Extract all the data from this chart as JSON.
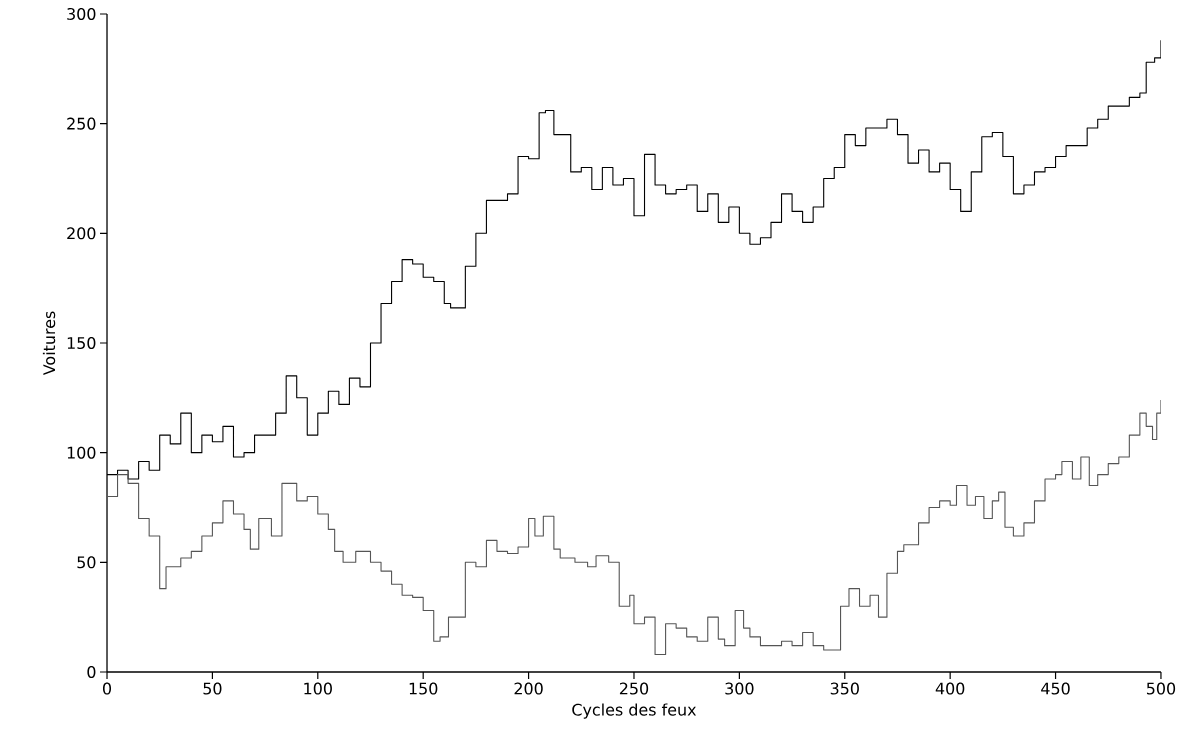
{
  "chart_data": {
    "type": "step",
    "xlabel": "Cycles des feux",
    "ylabel": "Voitures",
    "xlim": [
      0,
      500
    ],
    "ylim": [
      0,
      300
    ],
    "xticks": [
      0,
      50,
      100,
      150,
      200,
      250,
      300,
      350,
      400,
      450,
      500
    ],
    "yticks": [
      0,
      50,
      100,
      150,
      200,
      250,
      300
    ],
    "grid": false,
    "marker": "none",
    "line_style": "solid",
    "series": [
      {
        "color": "#000000",
        "x": [
          0,
          5,
          10,
          15,
          20,
          25,
          30,
          35,
          40,
          45,
          50,
          55,
          60,
          65,
          70,
          80,
          85,
          90,
          95,
          100,
          105,
          110,
          115,
          120,
          125,
          130,
          135,
          140,
          145,
          150,
          155,
          160,
          163,
          170,
          175,
          180,
          190,
          195,
          200,
          205,
          208,
          212,
          220,
          225,
          230,
          235,
          240,
          245,
          250,
          255,
          260,
          265,
          270,
          275,
          280,
          285,
          290,
          295,
          300,
          305,
          310,
          315,
          320,
          325,
          330,
          335,
          340,
          345,
          350,
          355,
          360,
          370,
          375,
          380,
          385,
          390,
          395,
          400,
          405,
          410,
          415,
          420,
          425,
          430,
          435,
          440,
          445,
          450,
          455,
          460,
          465,
          470,
          475,
          480,
          485,
          490,
          493,
          497,
          500
        ],
        "values": [
          90,
          92,
          88,
          96,
          92,
          108,
          104,
          118,
          100,
          108,
          105,
          112,
          98,
          100,
          108,
          118,
          135,
          125,
          108,
          118,
          128,
          122,
          134,
          130,
          150,
          168,
          178,
          188,
          186,
          180,
          178,
          168,
          166,
          185,
          200,
          215,
          218,
          235,
          234,
          255,
          256,
          245,
          228,
          230,
          220,
          230,
          222,
          225,
          208,
          236,
          222,
          218,
          220,
          222,
          210,
          218,
          205,
          212,
          200,
          195,
          198,
          205,
          218,
          210,
          205,
          212,
          225,
          230,
          245,
          240,
          248,
          252,
          245,
          232,
          238,
          228,
          232,
          220,
          210,
          228,
          244,
          246,
          235,
          218,
          222,
          228,
          230,
          235,
          240,
          240,
          248,
          252,
          258,
          258,
          262,
          264,
          278,
          280,
          288
        ]
      },
      {
        "color": "#555555",
        "x": [
          0,
          5,
          10,
          15,
          20,
          25,
          28,
          35,
          40,
          45,
          50,
          55,
          60,
          65,
          68,
          72,
          78,
          83,
          90,
          95,
          100,
          105,
          108,
          112,
          118,
          125,
          130,
          135,
          140,
          145,
          150,
          155,
          158,
          162,
          170,
          175,
          180,
          185,
          190,
          195,
          200,
          203,
          207,
          212,
          215,
          222,
          228,
          232,
          238,
          243,
          248,
          250,
          255,
          260,
          265,
          270,
          275,
          280,
          285,
          290,
          293,
          298,
          302,
          305,
          310,
          320,
          325,
          330,
          335,
          340,
          344,
          348,
          352,
          357,
          362,
          366,
          370,
          375,
          378,
          385,
          390,
          395,
          400,
          403,
          408,
          412,
          416,
          420,
          423,
          426,
          430,
          435,
          440,
          445,
          450,
          453,
          458,
          462,
          466,
          470,
          475,
          480,
          485,
          490,
          493,
          496,
          498,
          500
        ],
        "values": [
          80,
          90,
          86,
          70,
          62,
          38,
          48,
          52,
          55,
          62,
          68,
          78,
          72,
          65,
          56,
          70,
          62,
          86,
          78,
          80,
          72,
          65,
          55,
          50,
          55,
          50,
          46,
          40,
          35,
          34,
          28,
          14,
          16,
          25,
          50,
          48,
          60,
          55,
          54,
          57,
          70,
          62,
          71,
          56,
          52,
          50,
          48,
          53,
          50,
          30,
          35,
          22,
          25,
          8,
          22,
          20,
          16,
          14,
          25,
          15,
          12,
          28,
          20,
          16,
          12,
          14,
          12,
          18,
          12,
          10,
          10,
          30,
          38,
          30,
          35,
          25,
          45,
          55,
          58,
          68,
          75,
          78,
          76,
          85,
          76,
          80,
          70,
          78,
          82,
          66,
          62,
          68,
          78,
          88,
          90,
          96,
          88,
          98,
          85,
          90,
          95,
          98,
          108,
          118,
          112,
          106,
          118,
          124
        ]
      }
    ]
  }
}
